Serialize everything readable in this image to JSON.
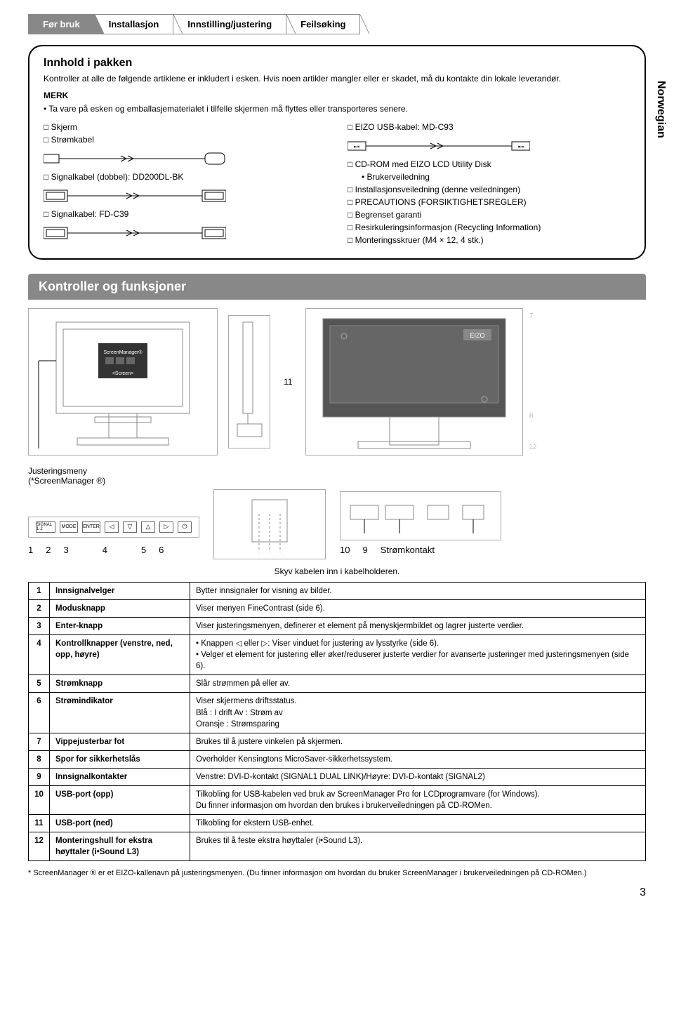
{
  "tabs": [
    "Før bruk",
    "Installasjon",
    "Innstilling/justering",
    "Feilsøking"
  ],
  "sideLabel": "Norwegian",
  "box1": {
    "title": "Innhold i pakken",
    "intro": "Kontroller at alle de følgende artiklene er inkludert i esken. Hvis noen artikler mangler eller er skadet, må du kontakte din lokale leverandør.",
    "merkLabel": "MERK",
    "merkText": "• Ta vare på esken og emballasjematerialet i tilfelle skjermen må flyttes eller transporteres senere.",
    "leftItems": [
      "□ Skjerm",
      "□ Strømkabel",
      "□ Signalkabel (dobbel): DD200DL-BK",
      "□ Signalkabel: FD-C39"
    ],
    "rightItems": [
      "□ EIZO USB-kabel: MD-C93",
      "□ CD-ROM med EIZO LCD Utility Disk",
      "    • Brukerveiledning",
      "□ Installasjonsveiledning (denne veiledningen)",
      "□ PRECAUTIONS (FORSIKTIGHETSREGLER)",
      "□ Begrenset garanti",
      "□ Resirkuleringsinformasjon (Recycling Information)",
      "□ Monteringsskruer (M4 × 12, 4 stk.)"
    ]
  },
  "section2Title": "Kontroller og funksjoner",
  "justLabel": "Justeringsmeny\n(*ScreenManager ®)",
  "buttonLabels": [
    "SIGNAL 1·2",
    "MODE",
    "ENTER",
    "◁",
    "▽",
    "△",
    "▷",
    "⏻"
  ],
  "numsLeft": [
    "1",
    "2",
    "3",
    "4",
    "5",
    "6"
  ],
  "numsRight": [
    "10",
    "9",
    "Strømkontakt"
  ],
  "diagNums": {
    "n7": "7",
    "n8": "8",
    "n11": "11",
    "n12": "12"
  },
  "skjv": "Skyv kabelen inn i kabelholderen.",
  "table": [
    [
      "1",
      "Innsignalvelger",
      "Bytter innsignaler for visning av bilder."
    ],
    [
      "2",
      "Modusknapp",
      "Viser menyen FineContrast (side 6)."
    ],
    [
      "3",
      "Enter-knapp",
      "Viser justeringsmenyen, definerer et element på menyskjermbildet og lagrer justerte verdier."
    ],
    [
      "4",
      "Kontrollknapper (venstre, ned, opp, høyre)",
      "• Knappen ◁ eller ▷: Viser vinduet for justering av lysstyrke (side 6).\n• Velger et element for justering eller øker/reduserer justerte verdier for avanserte justeringer med justeringsmenyen (side 6)."
    ],
    [
      "5",
      "Strømknapp",
      "Slår strømmen på eller av."
    ],
    [
      "6",
      "Strømindikator",
      "Viser skjermens driftsstatus.\n        Blå        : I drift                    Av      : Strøm av\n        Oransje  : Strømsparing"
    ],
    [
      "7",
      "Vippejusterbar fot",
      "Brukes til å justere vinkelen på skjermen."
    ],
    [
      "8",
      "Spor for sikkerhetslås",
      "Overholder Kensingtons MicroSaver-sikkerhetssystem."
    ],
    [
      "9",
      "Innsignalkontakter",
      "Venstre: DVI-D-kontakt (SIGNAL1 DUAL LINK)/Høyre: DVI-D-kontakt (SIGNAL2)"
    ],
    [
      "10",
      "USB-port (opp)",
      "Tilkobling for USB-kabelen ved bruk av ScreenManager Pro for LCDprogramvare (for Windows).\nDu finner informasjon om hvordan den brukes i brukerveiledningen på CD-ROMen."
    ],
    [
      "11",
      "USB-port (ned)",
      "Tilkobling for ekstern USB-enhet."
    ],
    [
      "12",
      "Monteringshull for ekstra høyttaler (i•Sound L3)",
      "Brukes til å feste ekstra høyttaler (i•Sound L3)."
    ]
  ],
  "footnote": "* ScreenManager ® er et EIZO-kallenavn på justeringsmenyen. (Du finner informasjon om hvordan du bruker ScreenManager i brukerveiledningen på CD-ROMen.)",
  "pageNum": "3"
}
